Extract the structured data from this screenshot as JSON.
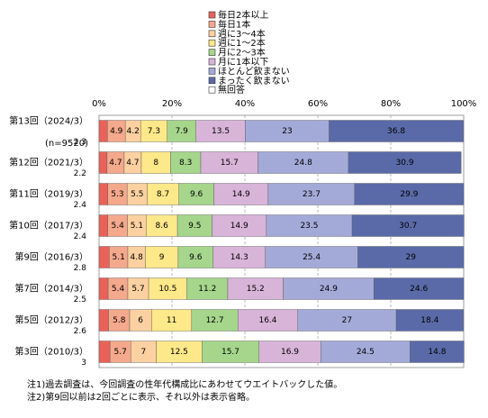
{
  "chart_data": {
    "type": "stacked-bar-horizontal",
    "categories": [
      "第13回（2024/3）",
      "第12回（2021/3）",
      "第11回（2019/3）",
      "第10回（2017/3）",
      "第9回（2016/3）",
      "第7回（2014/3）",
      "第5回（2012/3）",
      "第3回（2010/3）"
    ],
    "category_note": "(n=9520)",
    "xlim": [
      0,
      100
    ],
    "xticks": [
      {
        "value": 0,
        "label": "0%"
      },
      {
        "value": 20,
        "label": "20%"
      },
      {
        "value": 40,
        "label": "40%"
      },
      {
        "value": 60,
        "label": "60%"
      },
      {
        "value": 80,
        "label": "80%"
      },
      {
        "value": 100,
        "label": "100%"
      }
    ],
    "grid": true,
    "series": [
      {
        "name": "毎日2本以上",
        "color": "#e8625a",
        "values": [
          2.3,
          2.2,
          2.4,
          2.4,
          2.8,
          2.5,
          2.6,
          3.0
        ]
      },
      {
        "name": "毎日1本",
        "color": "#f4a88c",
        "values": [
          4.9,
          4.7,
          5.3,
          5.4,
          5.1,
          5.4,
          5.8,
          5.7
        ]
      },
      {
        "name": "週に3～4本",
        "color": "#fcd0a0",
        "values": [
          4.2,
          4.7,
          5.5,
          5.1,
          4.8,
          5.7,
          6.0,
          7.0
        ]
      },
      {
        "name": "週に1～2本",
        "color": "#fde88a",
        "values": [
          7.3,
          8.0,
          8.7,
          8.6,
          9.0,
          10.5,
          11.0,
          12.5
        ]
      },
      {
        "name": "月に2～3本",
        "color": "#a6d68c",
        "values": [
          7.9,
          8.3,
          9.6,
          9.5,
          9.6,
          11.2,
          12.7,
          15.7
        ]
      },
      {
        "name": "月に1本以下",
        "color": "#d8b4d8",
        "values": [
          13.5,
          15.7,
          14.9,
          14.9,
          14.3,
          15.2,
          16.4,
          16.9
        ]
      },
      {
        "name": "ほとんど飲まない",
        "color": "#a4aad8",
        "values": [
          23.0,
          24.8,
          23.7,
          23.5,
          25.4,
          24.9,
          27.0,
          24.5
        ]
      },
      {
        "name": "まったく飲まない",
        "color": "#5a6aa8",
        "values": [
          36.8,
          30.9,
          29.9,
          30.7,
          29.0,
          24.6,
          18.4,
          14.8
        ]
      },
      {
        "name": "無回答",
        "color": "#ffffff",
        "values": [
          null,
          null,
          null,
          null,
          null,
          null,
          null,
          null
        ]
      }
    ],
    "notes": [
      "注1)過去調査は、今回調査の性年代構成比にあわせてウエイトバックした値。",
      "注2)第9回以前は2回ごとに表示、それ以外は表示省略。"
    ]
  }
}
